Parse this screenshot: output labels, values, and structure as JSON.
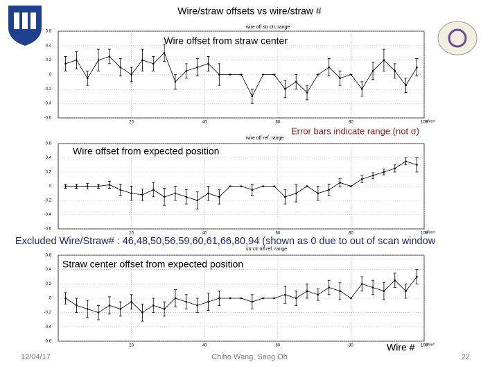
{
  "slide": {
    "title": "Wire/straw offsets vs wire/straw #",
    "note": "Error bars indicate range (not σ)",
    "excluded": "Excluded Wire/Straw# : 46,48,50,56,59,60,61,66,80,94 (shown as 0 due to out of scan window",
    "x_label": "Wire #",
    "date": "12/04/17",
    "author": "Chiho Wang, Seog Oh",
    "page": "22"
  },
  "chart_data": [
    {
      "type": "errorbar",
      "title": "wire off str ctr. range",
      "annotation": "Wire offset from straw center",
      "x_label": "Wire#",
      "color": "#000000",
      "x": [
        2,
        5,
        8,
        11,
        14,
        17,
        20,
        23,
        26,
        29,
        32,
        35,
        38,
        41,
        44,
        47,
        50,
        53,
        56,
        59,
        62,
        65,
        68,
        71,
        74,
        77,
        80,
        83,
        86,
        89,
        92,
        95,
        98
      ],
      "values": [
        0.15,
        0.2,
        -0.05,
        0.2,
        0.25,
        0.1,
        0.0,
        0.2,
        0.15,
        0.3,
        -0.1,
        0.05,
        0.1,
        0.15,
        0.0,
        0,
        0,
        -0.3,
        0,
        0,
        -0.2,
        -0.1,
        -0.25,
        0,
        0.1,
        -0.05,
        0,
        -0.2,
        0.05,
        0.2,
        0.05,
        -0.15,
        0.1
      ],
      "errors": [
        0.1,
        0.12,
        0.1,
        0.15,
        0.1,
        0.12,
        0.1,
        0.15,
        0.1,
        0.12,
        0.1,
        0.1,
        0.12,
        0.1,
        0.15,
        0,
        0,
        0.1,
        0,
        0,
        0.12,
        0.1,
        0.1,
        0,
        0.12,
        0.1,
        0,
        0.1,
        0.12,
        0.15,
        0.1,
        0.1,
        0.12
      ],
      "xlim": [
        0,
        100
      ],
      "xticks": [
        20,
        40,
        60,
        80,
        100
      ],
      "ylim": [
        -0.6,
        0.6
      ],
      "yticks": [
        -0.6,
        -0.4,
        -0.2,
        0,
        0.2,
        0.4,
        0.6
      ],
      "grid": true
    },
    {
      "type": "errorbar",
      "title": "wire off ref. range",
      "annotation": "Wire offset from expected position",
      "x_label": "Wire#",
      "color": "#000000",
      "x": [
        2,
        5,
        8,
        11,
        14,
        17,
        20,
        23,
        26,
        29,
        32,
        35,
        38,
        41,
        44,
        47,
        50,
        53,
        56,
        59,
        62,
        65,
        68,
        71,
        74,
        77,
        80,
        83,
        86,
        89,
        92,
        95,
        98
      ],
      "values": [
        0,
        0,
        0,
        0,
        0.02,
        -0.05,
        -0.1,
        -0.12,
        -0.05,
        -0.15,
        -0.1,
        -0.15,
        -0.2,
        -0.1,
        -0.15,
        0,
        0,
        -0.05,
        0,
        0,
        -0.15,
        -0.1,
        0,
        -0.1,
        -0.05,
        0.05,
        0,
        0.1,
        0.15,
        0.2,
        0.25,
        0.35,
        0.3
      ],
      "errors": [
        0.03,
        0.03,
        0.04,
        0.03,
        0.05,
        0.08,
        0.1,
        0.08,
        0.1,
        0.12,
        0.1,
        0.1,
        0.12,
        0.1,
        0.1,
        0,
        0,
        0.08,
        0,
        0,
        0.1,
        0.12,
        0,
        0.1,
        0.08,
        0.06,
        0,
        0.05,
        0.04,
        0.04,
        0.05,
        0.05,
        0.1
      ],
      "xlim": [
        0,
        100
      ],
      "xticks": [
        20,
        40,
        60,
        80,
        100
      ],
      "ylim": [
        -0.6,
        0.6
      ],
      "yticks": [
        -0.6,
        -0.4,
        -0.2,
        0,
        0.2,
        0.4,
        0.6
      ],
      "grid": true
    },
    {
      "type": "errorbar",
      "title": "str ctr off ref. range",
      "annotation": "Straw center offset from expected position",
      "x_label": "Wire#",
      "color": "#000000",
      "x": [
        2,
        5,
        8,
        11,
        14,
        17,
        20,
        23,
        26,
        29,
        32,
        35,
        38,
        41,
        44,
        47,
        50,
        53,
        56,
        59,
        62,
        65,
        68,
        71,
        74,
        77,
        80,
        83,
        86,
        89,
        92,
        95,
        98
      ],
      "values": [
        0,
        -0.1,
        -0.15,
        -0.2,
        -0.1,
        -0.15,
        -0.05,
        -0.2,
        -0.1,
        -0.15,
        0,
        -0.05,
        -0.1,
        -0.05,
        0,
        0,
        0,
        -0.05,
        0,
        0,
        0.05,
        0,
        0.1,
        0.05,
        0.15,
        0.1,
        0,
        0.2,
        0.15,
        0.1,
        0.25,
        0.1,
        0.3
      ],
      "errors": [
        0.08,
        0.1,
        0.12,
        0.1,
        0.12,
        0.1,
        0.1,
        0.12,
        0.1,
        0.1,
        0.12,
        0.1,
        0.1,
        0.12,
        0.1,
        0,
        0,
        0.1,
        0,
        0,
        0.12,
        0.1,
        0.1,
        0.08,
        0.1,
        0.12,
        0,
        0.1,
        0.1,
        0.12,
        0.1,
        0.1,
        0.1
      ],
      "xlim": [
        0,
        100
      ],
      "xticks": [
        20,
        40,
        60,
        80,
        100
      ],
      "ylim": [
        -0.6,
        0.6
      ],
      "yticks": [
        -0.6,
        -0.4,
        -0.2,
        0,
        0.2,
        0.4,
        0.6
      ],
      "grid": true
    }
  ]
}
